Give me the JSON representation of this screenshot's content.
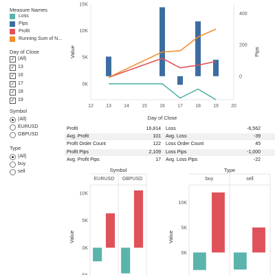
{
  "legend": {
    "title": "Measure Names",
    "items": [
      {
        "label": "Loss",
        "color": "#5ab4ac"
      },
      {
        "label": "Pips",
        "color": "#3d6da0"
      },
      {
        "label": "Profit",
        "color": "#e05259"
      },
      {
        "label": "Running Sum of N...",
        "color": "#f28e2b"
      }
    ]
  },
  "filters": {
    "day_of_close": {
      "title": "Day of Close",
      "options": [
        {
          "label": "(All)",
          "checked": true
        },
        {
          "label": "13",
          "checked": true
        },
        {
          "label": "16",
          "checked": true
        },
        {
          "label": "17",
          "checked": true
        },
        {
          "label": "18",
          "checked": true
        },
        {
          "label": "19",
          "checked": true
        }
      ]
    },
    "symbol": {
      "title": "Symbol",
      "options": [
        {
          "label": "(All)",
          "selected": true
        },
        {
          "label": "EURUSD",
          "selected": false
        },
        {
          "label": "GBPUSD",
          "selected": false
        }
      ]
    },
    "type": {
      "title": "Type",
      "options": [
        {
          "label": "(All)",
          "selected": true
        },
        {
          "label": "buy",
          "selected": false
        },
        {
          "label": "sell",
          "selected": false
        }
      ]
    }
  },
  "stats": {
    "rows": [
      {
        "l_label": "Profit",
        "l_value": "16,814",
        "r_label": "Loss",
        "r_value": "-6,562"
      },
      {
        "l_label": "Avg. Profit",
        "l_value": "101",
        "r_label": "Avg. Loss",
        "r_value": "-39"
      },
      {
        "l_label": "Profit Order Count",
        "l_value": "122",
        "r_label": "Loss Order Count",
        "r_value": "45"
      },
      {
        "l_label": "Profit Pips",
        "l_value": "2,109",
        "r_label": "Loss Pips",
        "r_value": "-1,000"
      },
      {
        "l_label": "Avg. Profit Pips",
        "l_value": "17",
        "r_label": "Avg. Loss Pips",
        "r_value": "-22"
      }
    ]
  },
  "chart_data": [
    {
      "type": "bar+line",
      "xlabel": "Day of Close",
      "ylabel": "Value",
      "y2label": "Pips",
      "x_ticks": [
        "12",
        "13",
        "14",
        "15",
        "16",
        "17",
        "18",
        "19",
        "20"
      ],
      "y_ticks": [
        "0K",
        "5K",
        "10K",
        "15K"
      ],
      "y2_ticks": [
        "0",
        "200",
        "400"
      ],
      "ylim": [
        -3000,
        15000
      ],
      "y2lim": [
        -150,
        460
      ],
      "x": [
        13,
        16,
        17,
        18,
        19
      ],
      "series": [
        {
          "name": "Pips",
          "axis": "y2",
          "kind": "bar",
          "values": [
            125,
            440,
            -55,
            350,
            105
          ]
        },
        {
          "name": "Loss",
          "axis": "y",
          "kind": "line",
          "values": [
            0,
            0,
            -2700,
            -1000,
            -3000
          ]
        },
        {
          "name": "Profit",
          "axis": "y",
          "kind": "line",
          "values": [
            1200,
            4800,
            3000,
            3500,
            4200
          ]
        },
        {
          "name": "Running Sum of N...",
          "axis": "y",
          "kind": "line",
          "values": [
            1200,
            6000,
            6200,
            8800,
            10300
          ]
        }
      ]
    },
    {
      "type": "bar",
      "title": "Symbol",
      "panels": [
        "EURUSD",
        "GBPUSD"
      ],
      "ylabel": "Value",
      "y_ticks": [
        "-5K",
        "0K",
        "5K",
        "10K"
      ],
      "ylim": [
        -5000,
        11500
      ],
      "series": [
        {
          "name": "Loss",
          "values": [
            -2500,
            -4700
          ]
        },
        {
          "name": "Profit",
          "values": [
            6300,
            10500
          ]
        }
      ]
    },
    {
      "type": "bar",
      "title": "Type",
      "panels": [
        "buy",
        "sell"
      ],
      "ylabel": "Value",
      "y_ticks": [
        "0K",
        "5K",
        "10K"
      ],
      "ylim": [
        -4500,
        13500
      ],
      "series": [
        {
          "name": "Loss",
          "values": [
            -3500,
            -3400
          ]
        },
        {
          "name": "Profit",
          "values": [
            12000,
            5000
          ]
        }
      ]
    }
  ]
}
